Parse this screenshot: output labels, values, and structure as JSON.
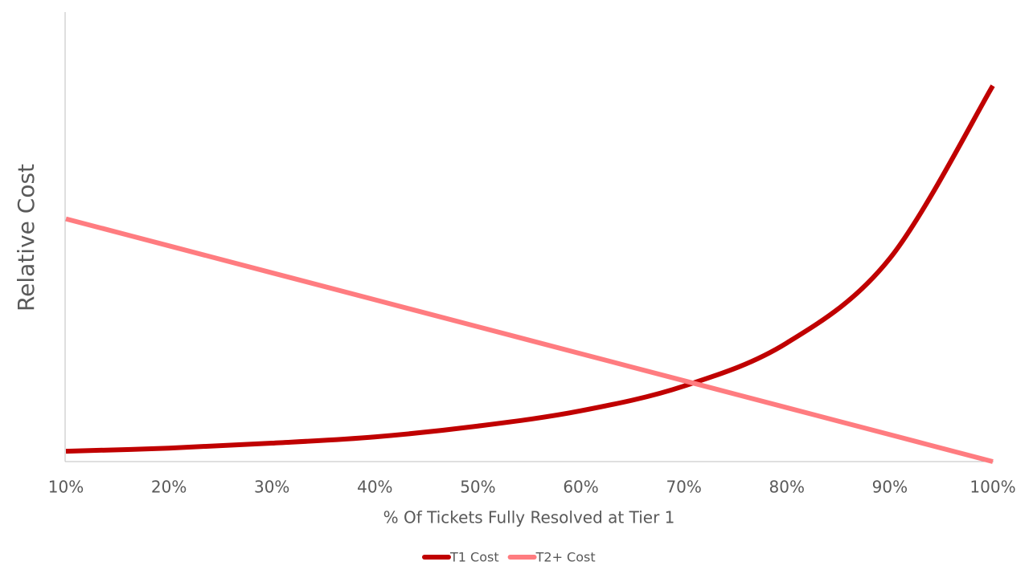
{
  "chart_data": {
    "type": "line",
    "x_label": "% Of Tickets Fully Resolved at Tier 1",
    "y_label": "Relative Cost",
    "categories": [
      "10%",
      "20%",
      "30%",
      "40%",
      "50%",
      "60%",
      "70%",
      "80%",
      "90%",
      "100%"
    ],
    "series": [
      {
        "name": "T1 Cost",
        "color": "#c00000",
        "values": [
          2.3,
          3.0,
          4.1,
          5.5,
          7.9,
          11.3,
          16.8,
          26.4,
          45.2,
          83.6
        ]
      },
      {
        "name": "T2+ Cost",
        "color": "#ff7c80",
        "values": [
          54,
          48,
          42,
          36,
          30,
          24,
          18,
          12,
          6,
          0
        ]
      }
    ],
    "ylim": [
      0,
      100
    ],
    "legend": "bottom"
  }
}
